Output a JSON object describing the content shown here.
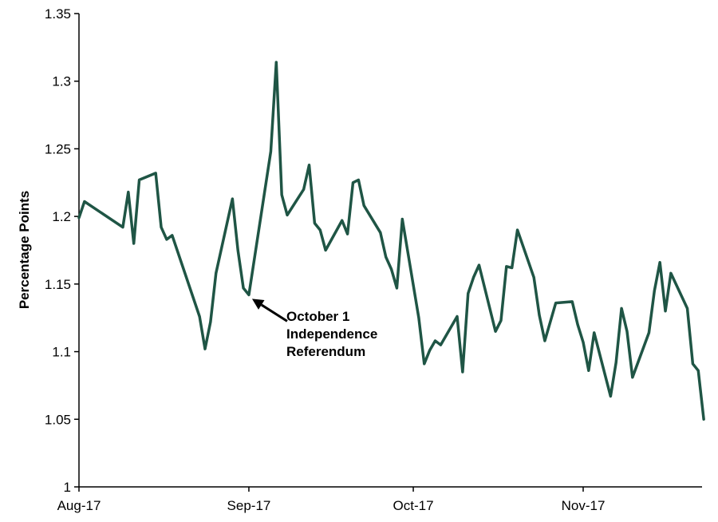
{
  "chart_data": {
    "type": "line",
    "title": "",
    "xlabel": "",
    "ylabel": "Percentage Points",
    "ylim": [
      1,
      1.35
    ],
    "yticks": [
      "1",
      "1.05",
      "1.1",
      "1.15",
      "1.2",
      "1.25",
      "1.3",
      "1.35"
    ],
    "xticks": [
      "Aug-17",
      "Sep-17",
      "Oct-17",
      "Nov-17"
    ],
    "grid": false,
    "series": [
      {
        "color": "#1f5545",
        "points": [
          [
            "2017-08-01",
            1.199
          ],
          [
            "2017-08-02",
            1.211
          ],
          [
            "2017-08-09",
            1.192
          ],
          [
            "2017-08-10",
            1.218
          ],
          [
            "2017-08-11",
            1.18
          ],
          [
            "2017-08-12",
            1.227
          ],
          [
            "2017-08-15",
            1.232
          ],
          [
            "2017-08-16",
            1.192
          ],
          [
            "2017-08-17",
            1.183
          ],
          [
            "2017-08-18",
            1.186
          ],
          [
            "2017-08-23",
            1.126
          ],
          [
            "2017-08-24",
            1.102
          ],
          [
            "2017-08-25",
            1.122
          ],
          [
            "2017-08-26",
            1.158
          ],
          [
            "2017-08-29",
            1.213
          ],
          [
            "2017-08-30",
            1.175
          ],
          [
            "2017-08-31",
            1.147
          ],
          [
            "2017-09-01",
            1.142
          ],
          [
            "2017-09-05",
            1.248
          ],
          [
            "2017-09-06",
            1.314
          ],
          [
            "2017-09-07",
            1.216
          ],
          [
            "2017-09-08",
            1.201
          ],
          [
            "2017-09-11",
            1.22
          ],
          [
            "2017-09-12",
            1.238
          ],
          [
            "2017-09-13",
            1.195
          ],
          [
            "2017-09-14",
            1.19
          ],
          [
            "2017-09-15",
            1.175
          ],
          [
            "2017-09-18",
            1.197
          ],
          [
            "2017-09-19",
            1.187
          ],
          [
            "2017-09-20",
            1.225
          ],
          [
            "2017-09-21",
            1.227
          ],
          [
            "2017-09-22",
            1.208
          ],
          [
            "2017-09-25",
            1.188
          ],
          [
            "2017-09-26",
            1.17
          ],
          [
            "2017-09-27",
            1.161
          ],
          [
            "2017-09-28",
            1.147
          ],
          [
            "2017-09-29",
            1.198
          ],
          [
            "2017-10-02",
            1.125
          ],
          [
            "2017-10-03",
            1.091
          ],
          [
            "2017-10-04",
            1.101
          ],
          [
            "2017-10-05",
            1.108
          ],
          [
            "2017-10-06",
            1.105
          ],
          [
            "2017-10-09",
            1.126
          ],
          [
            "2017-10-10",
            1.085
          ],
          [
            "2017-10-11",
            1.143
          ],
          [
            "2017-10-12",
            1.155
          ],
          [
            "2017-10-13",
            1.164
          ],
          [
            "2017-10-16",
            1.115
          ],
          [
            "2017-10-17",
            1.123
          ],
          [
            "2017-10-18",
            1.163
          ],
          [
            "2017-10-19",
            1.162
          ],
          [
            "2017-10-20",
            1.19
          ],
          [
            "2017-10-23",
            1.155
          ],
          [
            "2017-10-24",
            1.127
          ],
          [
            "2017-10-25",
            1.108
          ],
          [
            "2017-10-27",
            1.136
          ],
          [
            "2017-10-30",
            1.137
          ],
          [
            "2017-10-31",
            1.12
          ],
          [
            "2017-11-01",
            1.107
          ],
          [
            "2017-11-02",
            1.086
          ],
          [
            "2017-11-03",
            1.114
          ],
          [
            "2017-11-06",
            1.067
          ],
          [
            "2017-11-07",
            1.092
          ],
          [
            "2017-11-08",
            1.132
          ],
          [
            "2017-11-09",
            1.115
          ],
          [
            "2017-11-10",
            1.081
          ],
          [
            "2017-11-13",
            1.114
          ],
          [
            "2017-11-14",
            1.145
          ],
          [
            "2017-11-15",
            1.166
          ],
          [
            "2017-11-16",
            1.13
          ],
          [
            "2017-11-17",
            1.158
          ],
          [
            "2017-11-20",
            1.132
          ],
          [
            "2017-11-21",
            1.091
          ],
          [
            "2017-11-22",
            1.086
          ],
          [
            "2017-11-23",
            1.05
          ]
        ]
      }
    ],
    "annotations": [
      {
        "lines": [
          "October 1",
          "Independence",
          "Referendum"
        ],
        "x": "2017-09-01",
        "y": 1.142
      }
    ]
  }
}
